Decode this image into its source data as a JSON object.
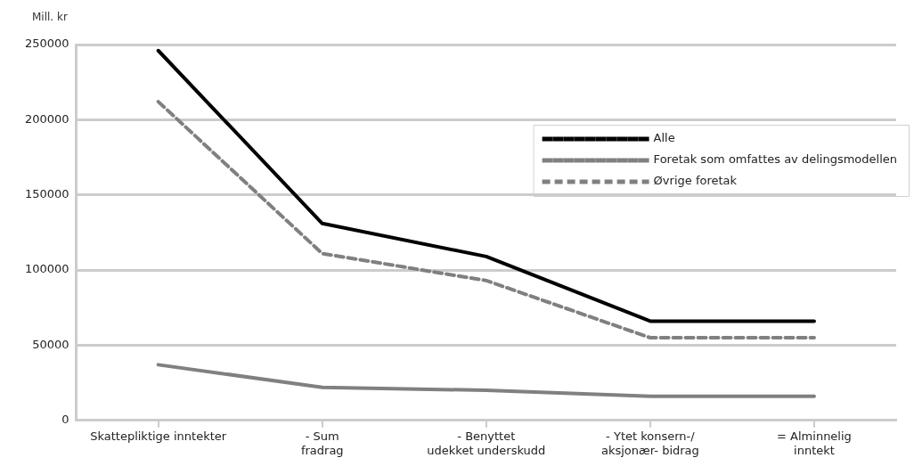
{
  "chart_data": {
    "type": "line",
    "ylabel": "Mill. kr",
    "categories": [
      "Skattepliktige inntekter",
      "- Sum\nfradrag",
      "- Benyttet\nudekket underskudd",
      "- Ytet konsern-/\naksjonær- bidrag",
      "= Alminnelig\ninntekt"
    ],
    "series": [
      {
        "name": "Alle",
        "color": "#000000",
        "line_style": "solid",
        "values": [
          246000,
          131000,
          109000,
          66000,
          66000
        ]
      },
      {
        "name": "Foretak som omfattes av delingsmodellen",
        "color": "#808080",
        "line_style": "solid",
        "values": [
          37000,
          22000,
          20000,
          16000,
          16000
        ]
      },
      {
        "name": "Øvrige foretak",
        "color": "#808080",
        "line_style": "dashed",
        "values": [
          212000,
          111000,
          93000,
          55000,
          55000
        ]
      }
    ],
    "ylim": [
      0,
      250000
    ],
    "yticks": [
      0,
      50000,
      100000,
      150000,
      200000,
      250000
    ],
    "grid": "y",
    "legend": "top right",
    "marker": "none"
  }
}
